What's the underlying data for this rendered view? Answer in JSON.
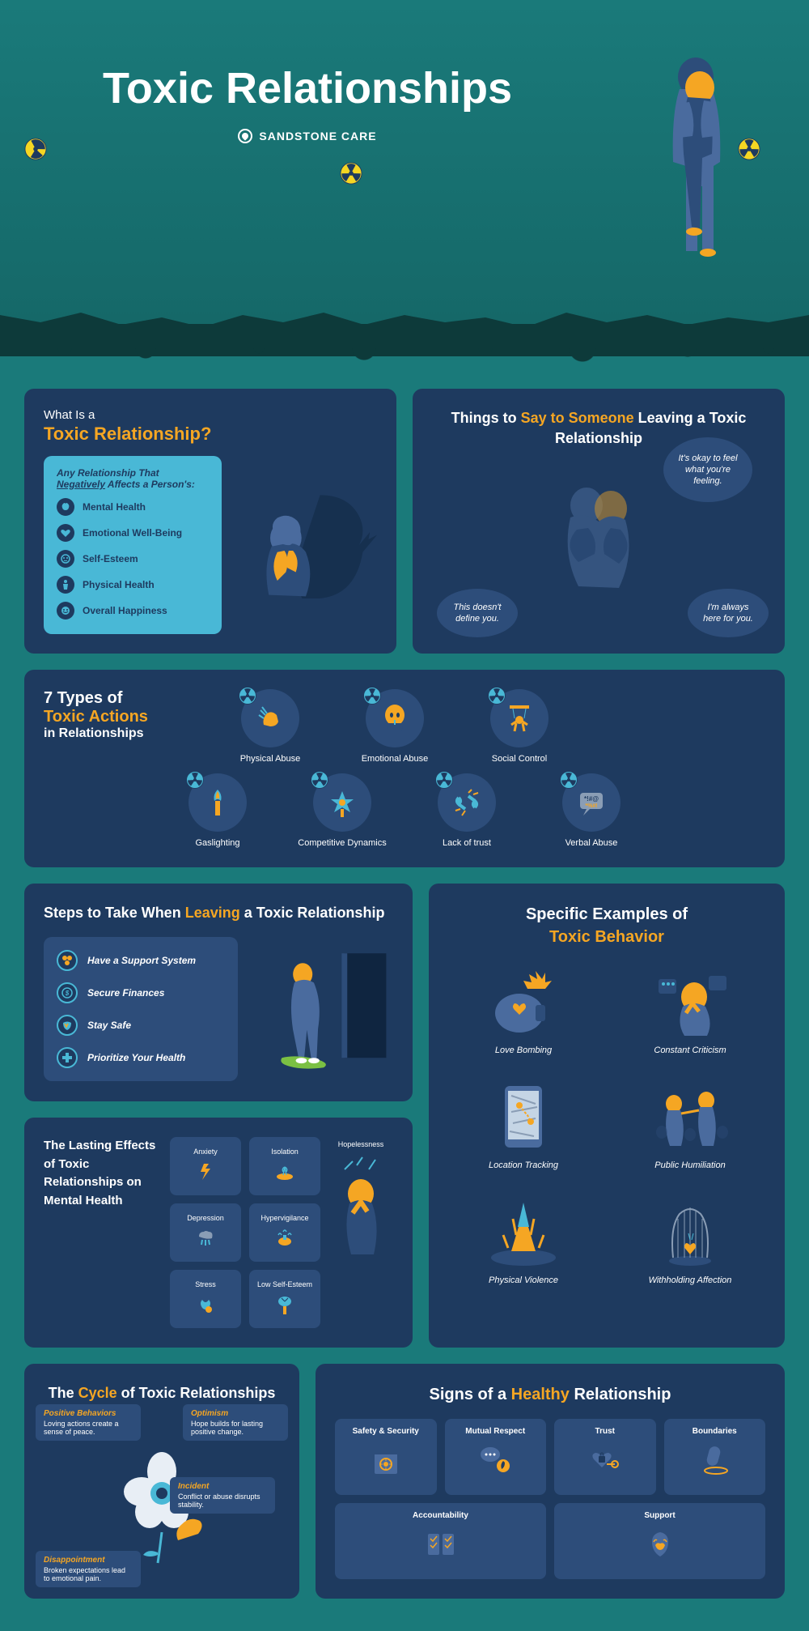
{
  "colors": {
    "bg": "#1a7a7a",
    "panel": "#1e3a5f",
    "panel_light": "#2d4d7a",
    "accent_orange": "#f5a623",
    "accent_cyan": "#49b8d6",
    "white": "#ffffff",
    "dark": "#0d3a3a"
  },
  "hero": {
    "title": "Toxic Relationships",
    "brand": "SANDSTONE CARE"
  },
  "whatis": {
    "label": "What Is a",
    "title": "Toxic Relationship?",
    "box_heading": "Any Relationship That Negatively Affects a Person's:",
    "items": [
      "Mental Health",
      "Emotional Well-Being",
      "Self-Esteem",
      "Physical Health",
      "Overall Happiness"
    ]
  },
  "say": {
    "title_pre": "Things to ",
    "title_accent": "Say to Someone",
    "title_post": " Leaving a Toxic Relationship",
    "bubbles": [
      "It's okay to feel what you're feeling.",
      "This doesn't define you.",
      "I'm always here for you."
    ]
  },
  "types": {
    "count": "7 Types of",
    "accent": "Toxic Actions",
    "tail": "in Relationships",
    "items": [
      "Physical Abuse",
      "Emotional Abuse",
      "Social Control",
      "Gaslighting",
      "Competitive Dynamics",
      "Lack of trust",
      "Verbal Abuse"
    ]
  },
  "steps": {
    "title_pre": "Steps to Take When ",
    "title_accent": "Leaving",
    "title_post": " a Toxic Relationship",
    "items": [
      "Have a Support System",
      "Secure Finances",
      "Stay Safe",
      "Prioritize Your Health"
    ]
  },
  "effects": {
    "t1": "The ",
    "t1a": "Lasting Effects",
    "t2": " of Toxic Relationships on ",
    "t2a": "Mental Health",
    "items": [
      "Anxiety",
      "Isolation",
      "Depression",
      "Hypervigilance",
      "Hopelessness",
      "Stress",
      "Low Self-Esteem"
    ]
  },
  "examples": {
    "title_pre": "Specific Examples of ",
    "title_accent": "Toxic Behavior",
    "items": [
      "Love Bombing",
      "Constant Criticism",
      "Location Tracking",
      "Public Humiliation",
      "Physical Violence",
      "Withholding Affection"
    ]
  },
  "cycle": {
    "title_pre": "The ",
    "title_accent": "Cycle",
    "title_post": " of Toxic Relationships",
    "labels": [
      {
        "h": "Positive Behaviors",
        "t": "Loving actions create a sense of peace."
      },
      {
        "h": "Optimism",
        "t": "Hope builds for lasting positive change."
      },
      {
        "h": "Incident",
        "t": "Conflict or abuse disrupts stability."
      },
      {
        "h": "Disappointment",
        "t": "Broken expectations lead to emotional pain."
      }
    ]
  },
  "healthy": {
    "title_pre": "Signs of a ",
    "title_accent": "Healthy",
    "title_post": " Relationship",
    "items": [
      "Safety & Security",
      "Mutual Respect",
      "Trust",
      "Boundaries",
      "Accountability",
      "Support"
    ]
  }
}
